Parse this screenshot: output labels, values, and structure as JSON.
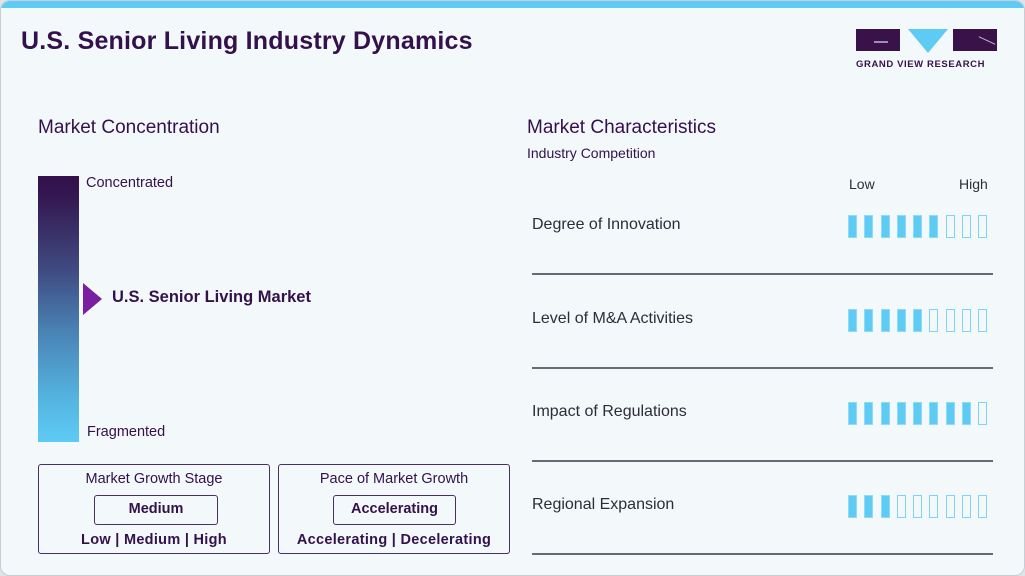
{
  "header": {
    "title": "U.S. Senior Living Industry Dynamics",
    "logo_text": "GRAND VIEW RESEARCH",
    "accent_color": "#5ecbf4",
    "brand_color": "#33114a"
  },
  "concentration": {
    "heading": "Market Concentration",
    "top_label": "Concentrated",
    "bottom_label": "Fragmented",
    "marker_label": "U.S. Senior Living Market",
    "marker_position_pct": 45,
    "gradient": [
      "#33114a",
      "#5ecbf4"
    ]
  },
  "growth_stage": {
    "title": "Market Growth Stage",
    "value": "Medium",
    "options": "Low | Medium | High"
  },
  "growth_pace": {
    "title": "Pace of Market Growth",
    "value": "Accelerating",
    "options": "Accelerating | Decelerating"
  },
  "characteristics": {
    "heading": "Market Characteristics",
    "subheading": "Industry Competition",
    "scale_low": "Low",
    "scale_high": "High",
    "max_segments": 9,
    "rows": [
      {
        "label": "Degree of Innovation",
        "level": 6
      },
      {
        "label": "Level of M&A Activities",
        "level": 5
      },
      {
        "label": "Impact of Regulations",
        "level": 8
      },
      {
        "label": "Regional Expansion",
        "level": 3
      }
    ]
  },
  "chart_data": {
    "type": "bar",
    "title": "Market Characteristics - Industry Competition",
    "categories": [
      "Degree of Innovation",
      "Level of M&A Activities",
      "Impact of Regulations",
      "Regional Expansion"
    ],
    "values": [
      6,
      5,
      8,
      3
    ],
    "ylim": [
      0,
      9
    ],
    "xlabel": "",
    "ylabel": "Low to High"
  }
}
